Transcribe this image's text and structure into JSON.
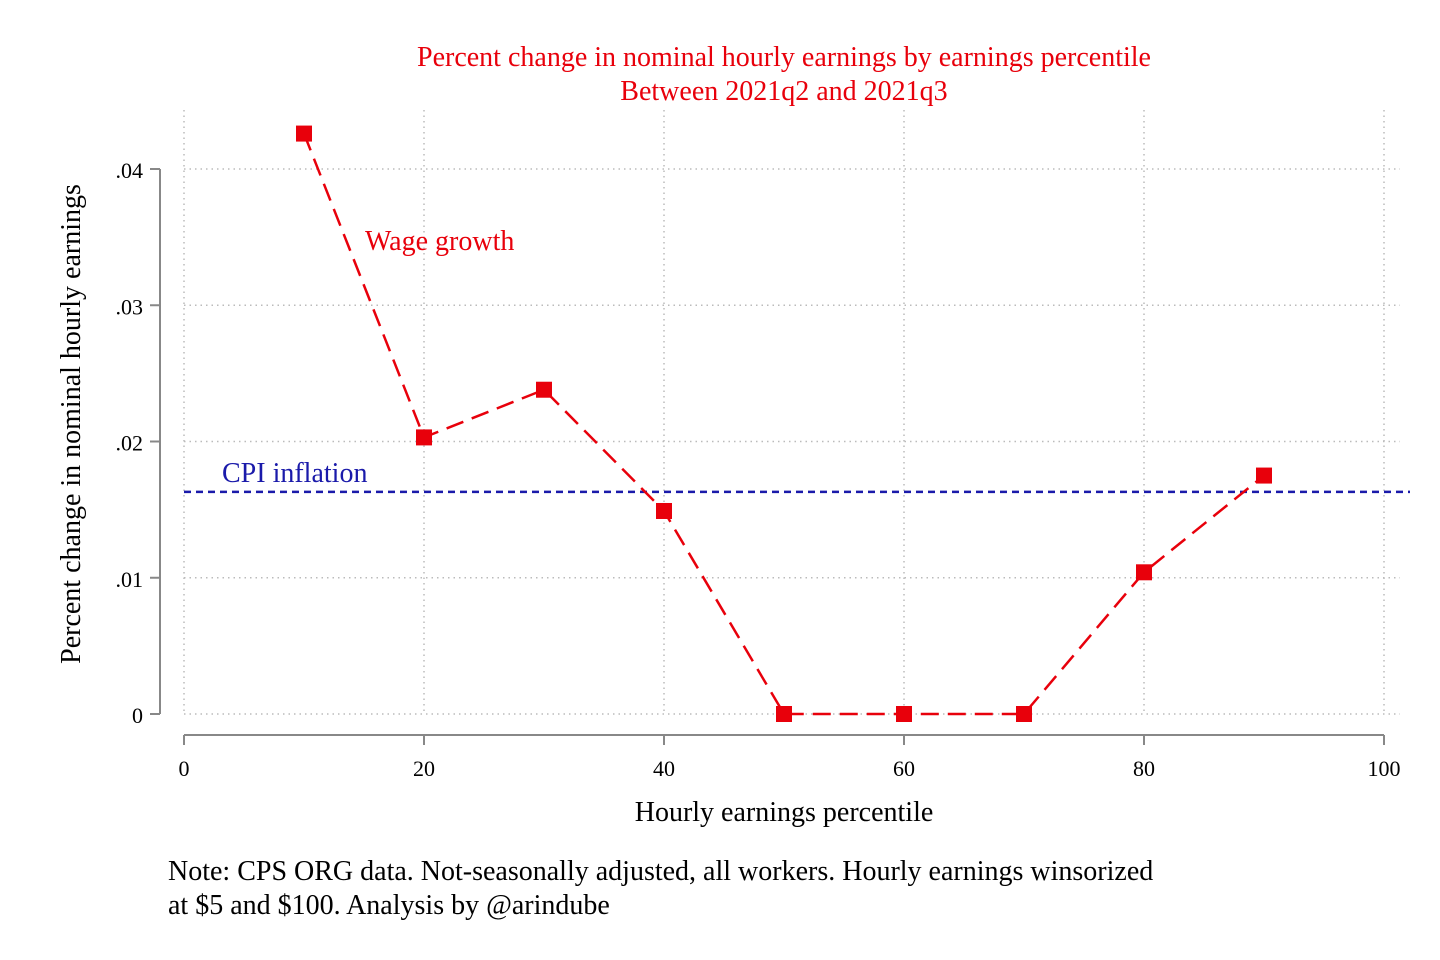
{
  "chart_data": {
    "type": "line",
    "title": "Percent change in nominal hourly earnings by earnings percentile",
    "subtitle": "Between 2021q2 and 2021q3",
    "xlabel": "Hourly earnings percentile",
    "ylabel": "Percent change in nominal hourly earnings",
    "xlim": [
      0,
      100
    ],
    "ylim": [
      0,
      0.04
    ],
    "x_ticks": [
      0,
      20,
      40,
      60,
      80,
      100
    ],
    "x_tick_labels": [
      "0",
      "20",
      "40",
      "60",
      "80",
      "100"
    ],
    "y_ticks": [
      0,
      0.01,
      0.02,
      0.03,
      0.04
    ],
    "y_tick_labels": [
      "0",
      ".01",
      ".02",
      ".03",
      ".04"
    ],
    "grid": true,
    "series": [
      {
        "name": "Wage growth",
        "color": "#e8000b",
        "marker": "square",
        "line_style": "dashed",
        "x": [
          10,
          20,
          30,
          40,
          50,
          60,
          70,
          80,
          90
        ],
        "y": [
          0.0426,
          0.0203,
          0.0238,
          0.0149,
          0,
          0,
          0,
          0.0104,
          0.0175
        ]
      }
    ],
    "reference_lines": [
      {
        "name": "CPI inflation",
        "y": 0.0163,
        "color": "#1a1aaa",
        "line_style": "dashed"
      }
    ],
    "note": [
      "Note: CPS ORG data. Not-seasonally adjusted, all workers. Hourly earnings winsorized",
      "at $5 and $100. Analysis by @arindube"
    ],
    "title_color": "#e8000b"
  }
}
